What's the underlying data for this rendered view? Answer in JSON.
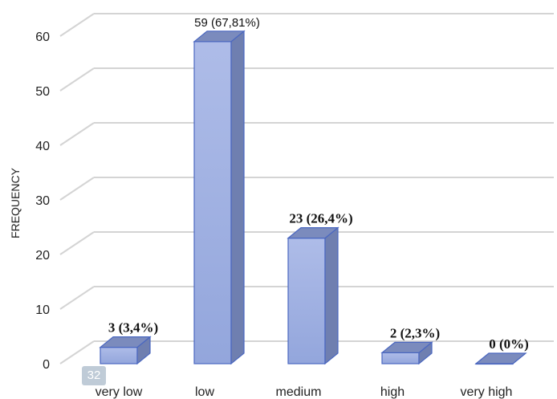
{
  "chart_data": {
    "type": "bar",
    "style": "3d-column",
    "ylabel": "FREQUENCY",
    "xlabel": "",
    "title": "",
    "ylim": [
      0,
      60
    ],
    "yticks": [
      0,
      10,
      20,
      30,
      40,
      50,
      60
    ],
    "grid": true,
    "legend": "none",
    "categories": [
      "very low",
      "low",
      "medium",
      "high",
      "very high"
    ],
    "values": [
      3,
      59,
      23,
      2,
      0
    ],
    "data_labels": [
      "3 (3,4%)",
      "59 (67,81%)",
      "23 (26,4%)",
      "2 (2,3%)",
      "0 (0%)"
    ],
    "colors": {
      "bar_front_top": "#aebce8",
      "bar_front_bottom": "#93a6dc",
      "bar_side": "#6f7fb0",
      "bar_top": "#7b8bbd",
      "bar_stroke": "#4a67c0",
      "grid": "#d4d4d4"
    }
  },
  "page_badge": "32"
}
